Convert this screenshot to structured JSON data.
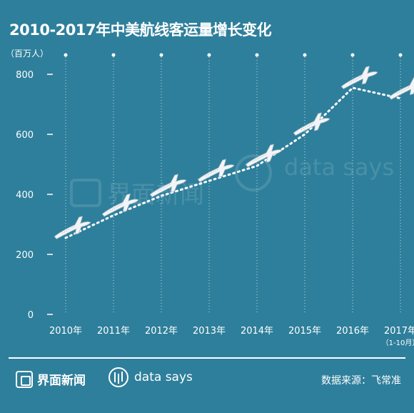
{
  "chart_data": {
    "type": "line",
    "title": "2010-2017年中美航线客运量增长变化",
    "unit_label": "（百万人）",
    "x": [
      "2010年",
      "2011年",
      "2012年",
      "2013年",
      "2014年",
      "2015年",
      "2016年",
      "2017年"
    ],
    "x_sublabel": {
      "index": 7,
      "text": "（1-10月）"
    },
    "values": [
      255,
      330,
      395,
      445,
      495,
      600,
      755,
      720
    ],
    "yticks": [
      "0",
      "200",
      "400",
      "600",
      "800"
    ],
    "ytick_values": [
      0,
      200,
      400,
      600,
      800
    ],
    "ylim": [
      0,
      800
    ],
    "line_color": "#ffffff",
    "line_style": "dotted",
    "marker_icon": "airplane-icon",
    "background_color": "#2e7f9b"
  },
  "watermark": {
    "brand": "界面新闻",
    "data_brand": "data says"
  },
  "footer": {
    "brand1": "界面新闻",
    "brand2": "data says",
    "source": "数据来源：飞常准"
  }
}
